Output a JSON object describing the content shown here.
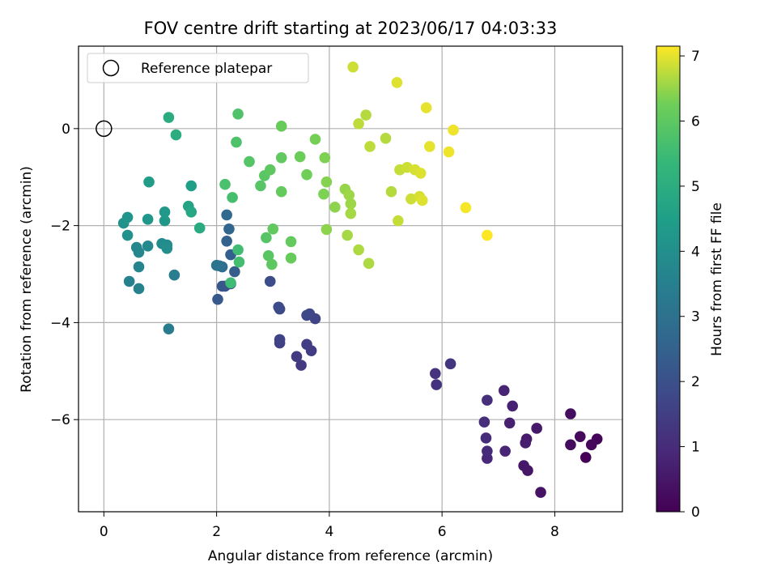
{
  "chart_data": {
    "type": "scatter",
    "title": "FOV centre drift starting at 2023/06/17 04:03:33",
    "xlabel": "Angular distance from reference (arcmin)",
    "ylabel": "Rotation from reference (arcmin)",
    "xlim": [
      -0.45,
      9.2
    ],
    "ylim": [
      -7.9,
      1.7
    ],
    "xticks": [
      0,
      2,
      4,
      6,
      8
    ],
    "yticks": [
      0,
      -2,
      -4,
      -6
    ],
    "grid": true,
    "legend": {
      "placement": "top-left",
      "entries": [
        "Reference platepar"
      ]
    },
    "reference_point": {
      "x": 0,
      "y": 0
    },
    "colorbar": {
      "label": "Hours from first FF file",
      "range": [
        0,
        7.15
      ],
      "ticks": [
        0,
        1,
        2,
        3,
        4,
        5,
        6,
        7
      ],
      "colormap": "viridis"
    },
    "points": [
      [
        8.55,
        -6.78,
        0.05
      ],
      [
        8.75,
        -6.4,
        0.1
      ],
      [
        8.65,
        -6.52,
        0.15
      ],
      [
        8.45,
        -6.35,
        0.2
      ],
      [
        8.28,
        -6.52,
        0.25
      ],
      [
        8.28,
        -5.88,
        0.3
      ],
      [
        7.75,
        -7.5,
        0.4
      ],
      [
        7.52,
        -7.05,
        0.45
      ],
      [
        7.45,
        -6.95,
        0.5
      ],
      [
        7.68,
        -6.18,
        0.55
      ],
      [
        7.5,
        -6.4,
        0.6
      ],
      [
        7.48,
        -6.48,
        0.65
      ],
      [
        7.2,
        -6.07,
        0.7
      ],
      [
        7.25,
        -5.72,
        0.75
      ],
      [
        7.1,
        -5.4,
        0.8
      ],
      [
        7.12,
        -6.65,
        0.85
      ],
      [
        6.8,
        -6.8,
        0.9
      ],
      [
        6.8,
        -6.65,
        0.95
      ],
      [
        6.78,
        -6.38,
        1.0
      ],
      [
        6.75,
        -6.05,
        1.05
      ],
      [
        6.8,
        -5.6,
        1.1
      ],
      [
        5.9,
        -5.28,
        1.15
      ],
      [
        5.88,
        -5.05,
        1.2
      ],
      [
        6.15,
        -4.85,
        1.25
      ],
      [
        3.5,
        -4.88,
        1.35
      ],
      [
        3.42,
        -4.7,
        1.4
      ],
      [
        3.68,
        -4.58,
        1.45
      ],
      [
        3.6,
        -4.45,
        1.5
      ],
      [
        3.12,
        -4.42,
        1.55
      ],
      [
        3.12,
        -4.35,
        1.6
      ],
      [
        3.75,
        -3.92,
        1.65
      ],
      [
        3.65,
        -3.82,
        1.7
      ],
      [
        3.6,
        -3.85,
        1.75
      ],
      [
        3.12,
        -3.72,
        1.8
      ],
      [
        3.1,
        -3.68,
        1.85
      ],
      [
        2.95,
        -3.15,
        1.9
      ],
      [
        2.25,
        -3.2,
        2.0
      ],
      [
        2.15,
        -3.25,
        2.05
      ],
      [
        2.1,
        -3.25,
        2.15
      ],
      [
        2.02,
        -3.52,
        2.25
      ],
      [
        2.32,
        -2.95,
        2.35
      ],
      [
        2.25,
        -2.6,
        2.45
      ],
      [
        2.18,
        -2.32,
        2.55
      ],
      [
        2.22,
        -2.07,
        2.65
      ],
      [
        2.18,
        -1.78,
        2.75
      ],
      [
        2.1,
        -2.85,
        2.85
      ],
      [
        2.05,
        -2.83,
        2.95
      ],
      [
        2.0,
        -2.82,
        3.05
      ],
      [
        1.15,
        -4.13,
        3.35
      ],
      [
        1.25,
        -3.02,
        3.45
      ],
      [
        0.45,
        -3.15,
        3.55
      ],
      [
        0.62,
        -3.3,
        3.6
      ],
      [
        0.62,
        -2.85,
        3.65
      ],
      [
        0.58,
        -2.45,
        3.7
      ],
      [
        0.62,
        -2.55,
        3.75
      ],
      [
        0.78,
        -2.42,
        3.8
      ],
      [
        1.03,
        -2.37,
        3.85
      ],
      [
        1.12,
        -2.4,
        3.9
      ],
      [
        1.12,
        -2.47,
        3.95
      ],
      [
        0.42,
        -2.2,
        4.05
      ],
      [
        0.35,
        -1.95,
        4.1
      ],
      [
        0.42,
        -1.83,
        4.15
      ],
      [
        0.78,
        -1.87,
        4.2
      ],
      [
        1.08,
        -1.9,
        4.25
      ],
      [
        1.08,
        -1.72,
        4.3
      ],
      [
        0.8,
        -1.1,
        4.4
      ],
      [
        1.55,
        -1.18,
        4.5
      ],
      [
        1.5,
        -1.6,
        4.7
      ],
      [
        1.55,
        -1.72,
        4.8
      ],
      [
        1.7,
        -2.05,
        4.9
      ],
      [
        1.15,
        0.23,
        4.95
      ],
      [
        1.28,
        -0.13,
        5.0
      ],
      [
        2.25,
        -3.18,
        5.5
      ],
      [
        2.38,
        -2.5,
        5.55
      ],
      [
        2.4,
        -2.75,
        5.6
      ],
      [
        2.28,
        -1.42,
        5.65
      ],
      [
        2.15,
        -1.15,
        5.7
      ],
      [
        2.35,
        -0.28,
        5.75
      ],
      [
        2.38,
        0.3,
        5.8
      ],
      [
        2.58,
        -0.68,
        5.85
      ],
      [
        2.78,
        -1.18,
        5.9
      ],
      [
        2.85,
        -0.97,
        5.95
      ],
      [
        2.95,
        -0.85,
        6.0
      ],
      [
        2.88,
        -2.25,
        5.9
      ],
      [
        2.92,
        -2.62,
        5.95
      ],
      [
        2.98,
        -2.8,
        6.0
      ],
      [
        3.0,
        -2.07,
        6.05
      ],
      [
        3.15,
        -1.3,
        6.1
      ],
      [
        3.15,
        -0.6,
        6.05
      ],
      [
        3.15,
        0.05,
        6.15
      ],
      [
        3.48,
        -0.58,
        6.2
      ],
      [
        3.6,
        -0.95,
        6.25
      ],
      [
        3.32,
        -2.33,
        6.1
      ],
      [
        3.32,
        -2.67,
        6.15
      ],
      [
        3.75,
        -0.22,
        6.3
      ],
      [
        3.92,
        -0.6,
        6.35
      ],
      [
        3.95,
        -1.1,
        6.4
      ],
      [
        3.9,
        -1.35,
        6.35
      ],
      [
        3.95,
        -2.08,
        6.45
      ],
      [
        4.1,
        -1.62,
        6.45
      ],
      [
        4.28,
        -1.25,
        6.5
      ],
      [
        4.35,
        -1.37,
        6.55
      ],
      [
        4.38,
        -1.55,
        6.55
      ],
      [
        4.38,
        -1.75,
        6.6
      ],
      [
        4.32,
        -2.2,
        6.6
      ],
      [
        4.52,
        -2.5,
        6.65
      ],
      [
        4.7,
        -2.78,
        6.65
      ],
      [
        4.65,
        0.28,
        6.7
      ],
      [
        4.52,
        0.1,
        6.75
      ],
      [
        4.72,
        -0.37,
        6.75
      ],
      [
        4.42,
        1.27,
        6.85
      ],
      [
        5.0,
        -0.2,
        6.7
      ],
      [
        5.1,
        -1.3,
        6.7
      ],
      [
        5.22,
        -1.9,
        6.8
      ],
      [
        5.25,
        -0.85,
        6.8
      ],
      [
        5.38,
        -0.8,
        6.85
      ],
      [
        5.45,
        -1.45,
        6.85
      ],
      [
        5.52,
        -0.85,
        6.9
      ],
      [
        5.6,
        -1.4,
        6.9
      ],
      [
        5.65,
        -1.48,
        6.95
      ],
      [
        5.62,
        -0.92,
        6.95
      ],
      [
        5.2,
        0.95,
        6.95
      ],
      [
        5.72,
        0.43,
        7.0
      ],
      [
        5.78,
        -0.37,
        7.0
      ],
      [
        6.12,
        -0.48,
        7.05
      ],
      [
        6.2,
        -0.03,
        7.05
      ],
      [
        6.42,
        -1.63,
        7.1
      ],
      [
        6.8,
        -2.2,
        7.15
      ]
    ]
  }
}
